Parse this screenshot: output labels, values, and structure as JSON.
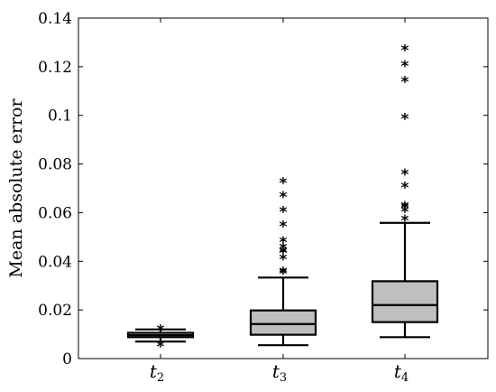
{
  "chart_data": {
    "type": "boxplot",
    "ylabel": "Mean absolute error",
    "ylim": [
      0,
      0.14
    ],
    "yticks": [
      "0",
      "0.02",
      "0.04",
      "0.06",
      "0.08",
      "0.1",
      "0.12",
      "0.14"
    ],
    "ytick_values": [
      0,
      0.02,
      0.04,
      0.06,
      0.08,
      0.1,
      0.12,
      0.14
    ],
    "box_color": "#bfbfbf",
    "outlier_marker": "*",
    "boxes": [
      {
        "label": "t",
        "sub": "2",
        "whisker_low": 0.007,
        "q1": 0.0088,
        "median": 0.0096,
        "q3": 0.0106,
        "whisker_high": 0.012,
        "outliers": [
          0.0062,
          0.0128
        ]
      },
      {
        "label": "t",
        "sub": "3",
        "whisker_low": 0.0055,
        "q1": 0.0098,
        "median": 0.0142,
        "q3": 0.0198,
        "whisker_high": 0.0333,
        "outliers": [
          0.036,
          0.0365,
          0.042,
          0.0445,
          0.045,
          0.0465,
          0.049,
          0.0555,
          0.0615,
          0.0675,
          0.0733
        ]
      },
      {
        "label": "t",
        "sub": "4",
        "whisker_low": 0.0088,
        "q1": 0.015,
        "median": 0.022,
        "q3": 0.0318,
        "whisker_high": 0.0558,
        "outliers": [
          0.058,
          0.0615,
          0.063,
          0.0635,
          0.0715,
          0.0768,
          0.0998,
          0.115,
          0.1215,
          0.128
        ]
      }
    ]
  }
}
